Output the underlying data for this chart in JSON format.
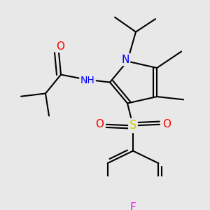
{
  "bg_color": "#e8e8e8",
  "atom_colors": {
    "N": "#0000ff",
    "O": "#ff0000",
    "S": "#cccc00",
    "F": "#ff00ff",
    "H": "#606060",
    "C": "#000000"
  },
  "bond_color": "#000000",
  "bond_width": 1.5,
  "figsize": [
    3.0,
    3.0
  ],
  "dpi": 100
}
